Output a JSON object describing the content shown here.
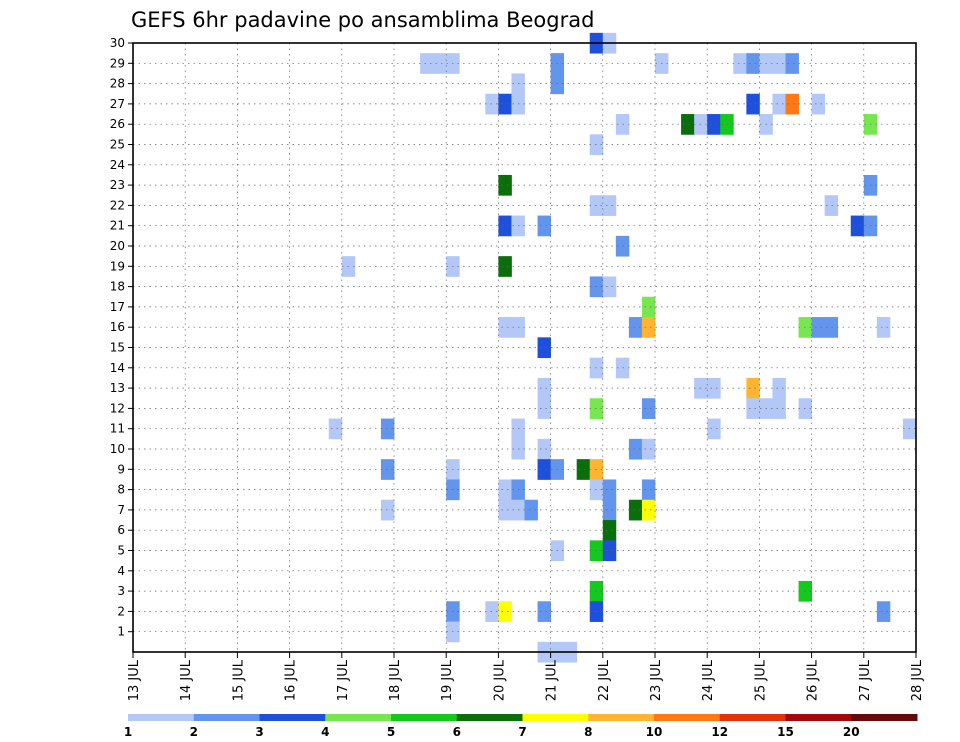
{
  "chart_data": {
    "type": "heatmap",
    "title": "GEFS 6hr padavine po ansamblima Beograd",
    "xlabel": "",
    "ylabel": "",
    "x_tick_labels": [
      "13 JUL",
      "14 JUL",
      "15 JUL",
      "16 JUL",
      "17 JUL",
      "18 JUL",
      "19 JUL",
      "20 JUL",
      "21 JUL",
      "22 JUL",
      "23 JUL",
      "24 JUL",
      "25 JUL",
      "26 JUL",
      "27 JUL",
      "28 JUL"
    ],
    "y_tick_labels": [
      "1",
      "2",
      "3",
      "4",
      "5",
      "6",
      "7",
      "8",
      "9",
      "10",
      "11",
      "12",
      "13",
      "14",
      "15",
      "16",
      "17",
      "18",
      "19",
      "20",
      "21",
      "22",
      "23",
      "24",
      "25",
      "26",
      "27",
      "28",
      "29",
      "30"
    ],
    "xlim": [
      0,
      60
    ],
    "ylim": [
      0,
      30
    ],
    "x_unit_note": "x = 6-hour steps from 13 JUL 00z",
    "grid": true,
    "colorbar": {
      "levels": [
        "1",
        "2",
        "3",
        "4",
        "5",
        "6",
        "7",
        "8",
        "10",
        "12",
        "15",
        "20"
      ],
      "colors": [
        "#b4c8f8",
        "#6495ed",
        "#1e50dc",
        "#78e650",
        "#14c81e",
        "#0a6e0a",
        "#ffff00",
        "#ffb432",
        "#ff7814",
        "#e1320a",
        "#a00a0a",
        "#640a0a"
      ]
    },
    "cells": [
      [
        35,
        30,
        3
      ],
      [
        36,
        30,
        1
      ],
      [
        22,
        29,
        1
      ],
      [
        23,
        29,
        1
      ],
      [
        24,
        29,
        1
      ],
      [
        32,
        29,
        2
      ],
      [
        40,
        29,
        1
      ],
      [
        46,
        29,
        1
      ],
      [
        47,
        29,
        2
      ],
      [
        48,
        29,
        1
      ],
      [
        49,
        29,
        1
      ],
      [
        50,
        29,
        2
      ],
      [
        29,
        28,
        1
      ],
      [
        32,
        28,
        2
      ],
      [
        27,
        27,
        1
      ],
      [
        28,
        27,
        3
      ],
      [
        29,
        27,
        1
      ],
      [
        47,
        27,
        3
      ],
      [
        49,
        27,
        1
      ],
      [
        50,
        27,
        9
      ],
      [
        52,
        27,
        1
      ],
      [
        42,
        26,
        6
      ],
      [
        43,
        26,
        1
      ],
      [
        44,
        26,
        3
      ],
      [
        45,
        26,
        5
      ],
      [
        48,
        26,
        1
      ],
      [
        56,
        26,
        4
      ],
      [
        37,
        26,
        1
      ],
      [
        35,
        25,
        1
      ],
      [
        28,
        23,
        6
      ],
      [
        56,
        23,
        2
      ],
      [
        35,
        22,
        1
      ],
      [
        36,
        22,
        1
      ],
      [
        53,
        22,
        1
      ],
      [
        28,
        21,
        3
      ],
      [
        29,
        21,
        1
      ],
      [
        31,
        21,
        2
      ],
      [
        55,
        21,
        3
      ],
      [
        56,
        21,
        2
      ],
      [
        37,
        20,
        2
      ],
      [
        16,
        19,
        1
      ],
      [
        24,
        19,
        1
      ],
      [
        28,
        19,
        6
      ],
      [
        35,
        18,
        2
      ],
      [
        36,
        18,
        1
      ],
      [
        39,
        17,
        4
      ],
      [
        28,
        16,
        1
      ],
      [
        29,
        16,
        1
      ],
      [
        38,
        16,
        2
      ],
      [
        39,
        16,
        8
      ],
      [
        51,
        16,
        4
      ],
      [
        52,
        16,
        2
      ],
      [
        53,
        16,
        2
      ],
      [
        57,
        16,
        1
      ],
      [
        31,
        15,
        3
      ],
      [
        35,
        14,
        1
      ],
      [
        37,
        14,
        1
      ],
      [
        31,
        13,
        1
      ],
      [
        43,
        13,
        1
      ],
      [
        44,
        13,
        1
      ],
      [
        47,
        13,
        8
      ],
      [
        49,
        13,
        1
      ],
      [
        31,
        12,
        1
      ],
      [
        35,
        12,
        4
      ],
      [
        39,
        12,
        2
      ],
      [
        47,
        12,
        1
      ],
      [
        48,
        12,
        1
      ],
      [
        49,
        12,
        1
      ],
      [
        51,
        12,
        1
      ],
      [
        15,
        11,
        1
      ],
      [
        19,
        11,
        2
      ],
      [
        29,
        11,
        1
      ],
      [
        44,
        11,
        1
      ],
      [
        59,
        11,
        1
      ],
      [
        29,
        10,
        1
      ],
      [
        31,
        10,
        1
      ],
      [
        38,
        10,
        2
      ],
      [
        39,
        10,
        1
      ],
      [
        19,
        9,
        2
      ],
      [
        24,
        9,
        1
      ],
      [
        31,
        9,
        3
      ],
      [
        32,
        9,
        2
      ],
      [
        34,
        9,
        6
      ],
      [
        35,
        9,
        8
      ],
      [
        24,
        8,
        2
      ],
      [
        28,
        8,
        1
      ],
      [
        29,
        8,
        2
      ],
      [
        35,
        8,
        1
      ],
      [
        36,
        8,
        2
      ],
      [
        39,
        8,
        2
      ],
      [
        19,
        7,
        1
      ],
      [
        28,
        7,
        1
      ],
      [
        29,
        7,
        1
      ],
      [
        30,
        7,
        2
      ],
      [
        36,
        7,
        2
      ],
      [
        38,
        7,
        6
      ],
      [
        39,
        7,
        7
      ],
      [
        36,
        6,
        6
      ],
      [
        32,
        5,
        1
      ],
      [
        35,
        5,
        5
      ],
      [
        36,
        5,
        3
      ],
      [
        35,
        3,
        5
      ],
      [
        51,
        3,
        5
      ],
      [
        24,
        2,
        2
      ],
      [
        27,
        2,
        1
      ],
      [
        28,
        2,
        7
      ],
      [
        31,
        2,
        2
      ],
      [
        35,
        2,
        3
      ],
      [
        57,
        2,
        2
      ],
      [
        24,
        1,
        1
      ],
      [
        31,
        0,
        1
      ],
      [
        32,
        0,
        1
      ],
      [
        33,
        0,
        1
      ]
    ]
  }
}
